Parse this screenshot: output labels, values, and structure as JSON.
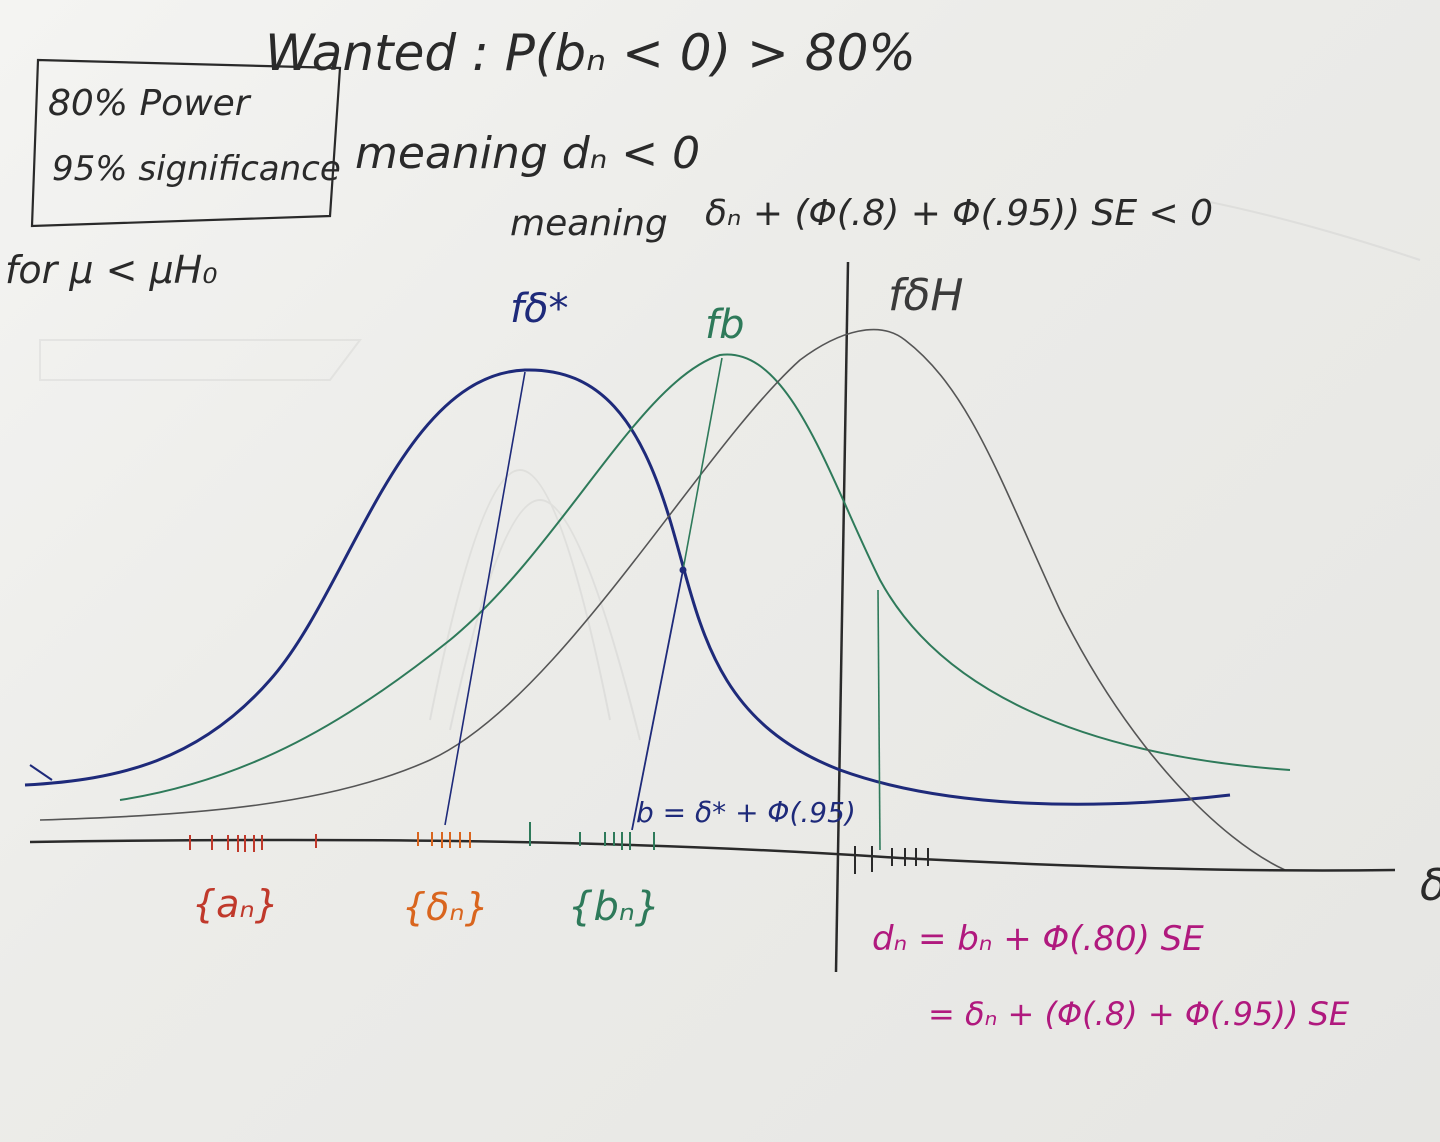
{
  "note_box": {
    "line1": "80% Power",
    "line2": "95% significance"
  },
  "header": {
    "wanted": "Wanted : P(bₙ < 0) > 80%",
    "meaning1": "meaning   dₙ < 0",
    "meaning2_word": "meaning",
    "meaning2_expr": "δₙ + (Φ(.8) + Φ(.95)) SE < 0",
    "condition": "for  μ < μH₀"
  },
  "curves": {
    "delta_star_label": "fδ*",
    "b_label": "fb",
    "delta_h_label": "fδH"
  },
  "annotations": {
    "b_eq": "b = δ* + Φ(.95)",
    "axis_symbol": "δ",
    "set_a": "{aₙ}",
    "set_delta": "{δₙ}",
    "set_b": "{bₙ}",
    "dn_line1": "dₙ = bₙ + Φ(.80) SE",
    "dn_line2": "= δₙ + (Φ(.8) + Φ(.95)) SE"
  },
  "colors": {
    "ink_black": "#2a2a2a",
    "navy": "#1e2a7a",
    "green": "#2e7a5a",
    "gray": "#555555",
    "red": "#c0392b",
    "orange": "#d9651e",
    "magenta": "#b0197e"
  }
}
